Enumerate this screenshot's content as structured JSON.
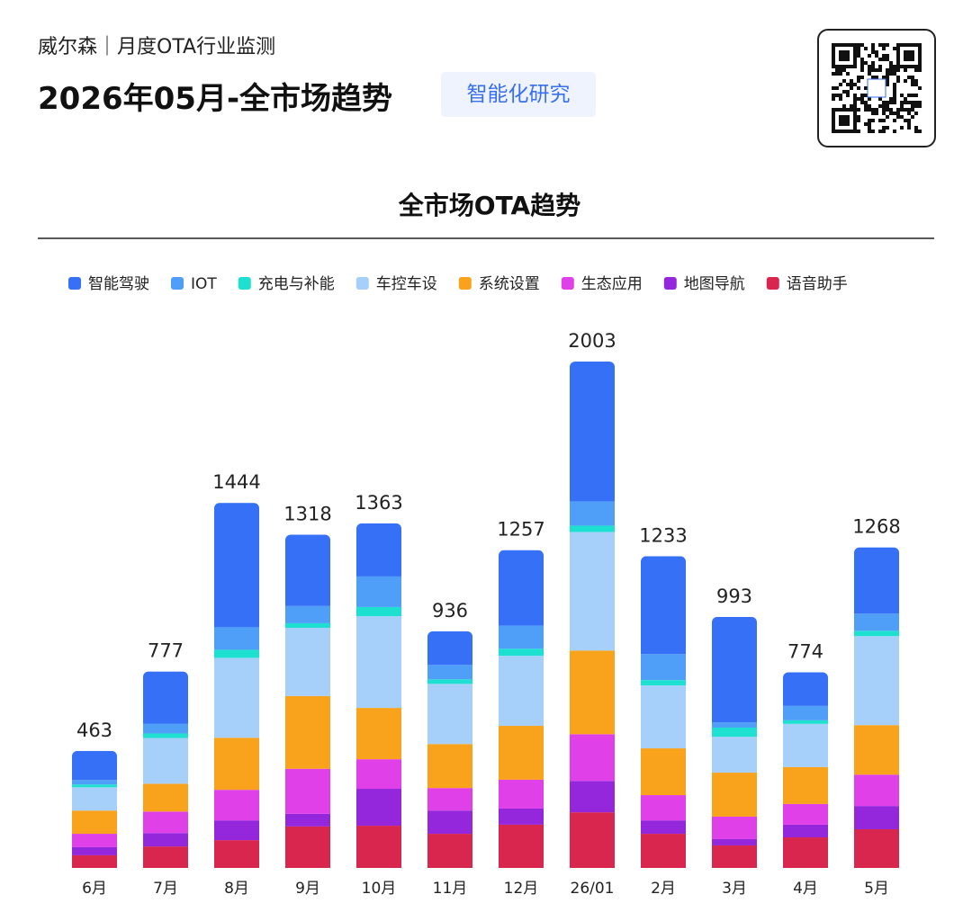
{
  "header": {
    "brand": "威尔森｜月度OTA行业监测",
    "title": "2026年05月-全市场趋势",
    "tag": "智能化研究"
  },
  "chart_data": {
    "type": "bar",
    "stacked": true,
    "title": "全市场OTA趋势",
    "categories": [
      "6月",
      "7月",
      "8月",
      "9月",
      "10月",
      "11月",
      "12月",
      "26/01",
      "2月",
      "3月",
      "4月",
      "5月"
    ],
    "totals": [
      463,
      777,
      1444,
      1318,
      1363,
      936,
      1257,
      2003,
      1233,
      993,
      774,
      1268
    ],
    "series": [
      {
        "name": "语音助手",
        "color": "#d9264f",
        "values": [
          50,
          85,
          110,
          164,
          167,
          135,
          171,
          220,
          135,
          89,
          121,
          153
        ]
      },
      {
        "name": "地图导航",
        "color": "#9427db",
        "values": [
          32,
          53,
          78,
          50,
          146,
          92,
          64,
          124,
          53,
          25,
          50,
          92
        ]
      },
      {
        "name": "生态应用",
        "color": "#e040e8",
        "values": [
          53,
          85,
          121,
          178,
          117,
          89,
          114,
          185,
          100,
          89,
          82,
          124
        ]
      },
      {
        "name": "系统设置",
        "color": "#f9a21c",
        "values": [
          92,
          110,
          206,
          288,
          203,
          174,
          213,
          331,
          185,
          174,
          146,
          196
        ]
      },
      {
        "name": "车控车设",
        "color": "#a6cff9",
        "values": [
          92,
          181,
          316,
          270,
          363,
          238,
          277,
          469,
          249,
          142,
          171,
          352
        ]
      },
      {
        "name": "充电与补能",
        "color": "#1de0d0",
        "values": [
          11,
          18,
          32,
          18,
          36,
          18,
          28,
          25,
          21,
          36,
          14,
          21
        ]
      },
      {
        "name": "IOT",
        "color": "#4f9ef8",
        "values": [
          18,
          39,
          89,
          68,
          121,
          57,
          92,
          96,
          103,
          21,
          57,
          68
        ]
      },
      {
        "name": "智能驾驶",
        "color": "#3570f6",
        "values": [
          115,
          206,
          492,
          282,
          210,
          133,
          298,
          553,
          387,
          417,
          133,
          262
        ]
      }
    ],
    "legend_order": [
      7,
      6,
      5,
      4,
      3,
      2,
      1,
      0
    ]
  }
}
